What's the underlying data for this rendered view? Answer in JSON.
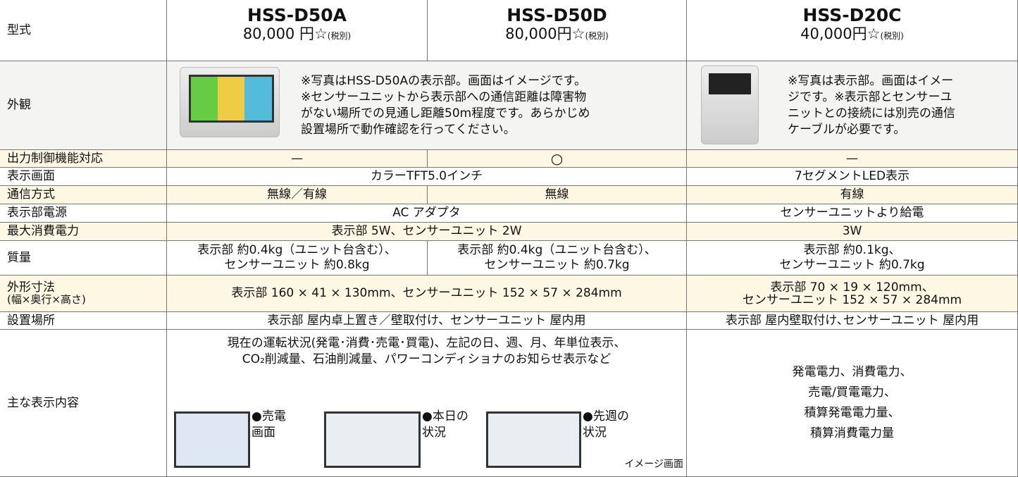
{
  "header": {
    "label": "型式",
    "models": [
      {
        "name": "HSS-D50A",
        "price": "80,000 円☆",
        "tax": "(税別)"
      },
      {
        "name": "HSS-D50D",
        "price": "80,000円☆",
        "tax": "(税別)"
      },
      {
        "name": "HSS-D20C",
        "price": "40,000円☆",
        "tax": "(税別)"
      }
    ]
  },
  "rows": [
    {
      "label": [
        "外観"
      ],
      "cells": [
        [
          "※写真はHSS-D50Aの表示部。画面はイメージです。",
          "※センサーユニットから表示部への通信距離は障害物",
          "がない場所での見通し距離50m程度です。あらかじめ",
          "設置場所で動作確認を行ってください。"
        ],
        [
          "※写真は表示部。画面はイメー",
          "ジです。※表示部とセンサーユ",
          "ニットとの接続には別売の通信",
          "ケーブルが必要です。"
        ]
      ]
    },
    {
      "label": [
        "出力制御機能対応"
      ],
      "cells": [
        [
          "—"
        ],
        [
          "○"
        ],
        [
          "—"
        ]
      ]
    },
    {
      "label": [
        "表示画面"
      ],
      "cells": [
        [
          "カラーTFT5.0インチ"
        ],
        [
          "7セグメントLED表示"
        ]
      ]
    },
    {
      "label": [
        "通信方式"
      ],
      "cells": [
        [
          "無線／有線"
        ],
        [
          "無線"
        ],
        [
          "有線"
        ]
      ]
    },
    {
      "label": [
        "表示部電源"
      ],
      "cells": [
        [
          "AC アダプタ"
        ],
        [
          "センサーユニットより給電"
        ]
      ]
    },
    {
      "label": [
        "最大消費電力"
      ],
      "cells": [
        [
          "表示部 5W、センサーユニット 2W"
        ],
        [
          "3W"
        ]
      ]
    },
    {
      "label": [
        "質量"
      ],
      "cells": [
        [
          "表示部 約0.4kg（ユニット台含む）、",
          "センサーユニット 約0.8kg"
        ],
        [
          "表示部 約0.4kg（ユニット台含む）、",
          "センサーユニット 約0.7kg"
        ],
        [
          "表示部 約0.1kg、",
          "センサーユニット 約0.7kg"
        ]
      ]
    },
    {
      "label": [
        "外形寸法",
        "(幅×奥行×高さ)"
      ],
      "cells": [
        [
          "表示部 160 × 41 × 130mm、センサーユニット 152 × 57 × 284mm"
        ],
        [
          "表示部 70 × 19 × 120mm、",
          "センサーユニット 152 × 57 × 284mm"
        ]
      ]
    },
    {
      "label": [
        "設置場所"
      ],
      "cells": [
        [
          "表示部 屋内卓上置き／壁取付け、センサーユニット 屋内用"
        ],
        [
          "表示部 屋内壁取付け､センサーユニット 屋内用"
        ]
      ]
    },
    {
      "label": [
        "主な表示内容"
      ],
      "cells": [
        [
          "現在の運転状況(発電･消費･売電･買電)、左記の日、週、月、年単位表示、",
          "CO₂削減量、石油削減量、パワーコンディショナのお知らせ表示など"
        ],
        [
          "発電電力、消費電力、",
          "売電/買電電力、",
          "積算発電電力量、",
          "積算消費電力量"
        ]
      ],
      "screens": [
        [
          "●売電",
          "画面"
        ],
        [
          "●本日の",
          "状況"
        ],
        [
          "●先週の",
          "状況"
        ]
      ],
      "screen_note": "イメージ画面"
    }
  ]
}
